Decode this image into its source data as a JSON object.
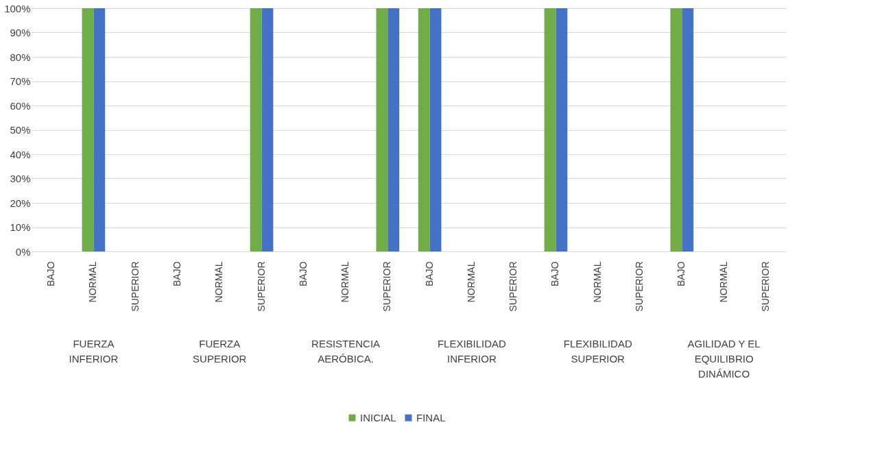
{
  "chart_data": {
    "type": "bar",
    "categories": [
      "BAJO",
      "NORMAL",
      "SUPERIOR",
      "BAJO",
      "NORMAL",
      "SUPERIOR",
      "BAJO",
      "NORMAL",
      "SUPERIOR",
      "BAJO",
      "NORMAL",
      "SUPERIOR",
      "BAJO",
      "NORMAL",
      "SUPERIOR",
      "BAJO",
      "NORMAL",
      "SUPERIOR"
    ],
    "series": [
      {
        "name": "INICIAL",
        "color": "#70ad47",
        "values": [
          0,
          100,
          0,
          0,
          0,
          100,
          0,
          0,
          100,
          100,
          0,
          0,
          100,
          0,
          0,
          100,
          0,
          0
        ]
      },
      {
        "name": "FINAL",
        "color": "#4472c4",
        "values": [
          0,
          100,
          0,
          0,
          0,
          100,
          0,
          0,
          100,
          100,
          0,
          0,
          100,
          0,
          0,
          100,
          0,
          0
        ]
      }
    ],
    "annotations": [
      "FUERZA INFERIOR",
      "FUERZA SUPERIOR",
      "RESISTENCIA AERÓBICA.",
      "FLEXIBILIDAD INFERIOR",
      "FLEXIBILIDAD SUPERIOR",
      "AGILIDAD Y EL EQUILIBRIO DINÁMICO"
    ],
    "ylim": [
      0,
      100
    ],
    "yticks": [
      {
        "value": 0,
        "label": "0%"
      },
      {
        "value": 10,
        "label": "10%"
      },
      {
        "value": 20,
        "label": "20%"
      },
      {
        "value": 30,
        "label": "30%"
      },
      {
        "value": 40,
        "label": "40%"
      },
      {
        "value": 50,
        "label": "50%"
      },
      {
        "value": 60,
        "label": "60%"
      },
      {
        "value": 70,
        "label": "70%"
      },
      {
        "value": 80,
        "label": "80%"
      },
      {
        "value": 90,
        "label": "90%"
      },
      {
        "value": 100,
        "label": "100%"
      }
    ],
    "grid": "y",
    "legend": "bottom"
  }
}
